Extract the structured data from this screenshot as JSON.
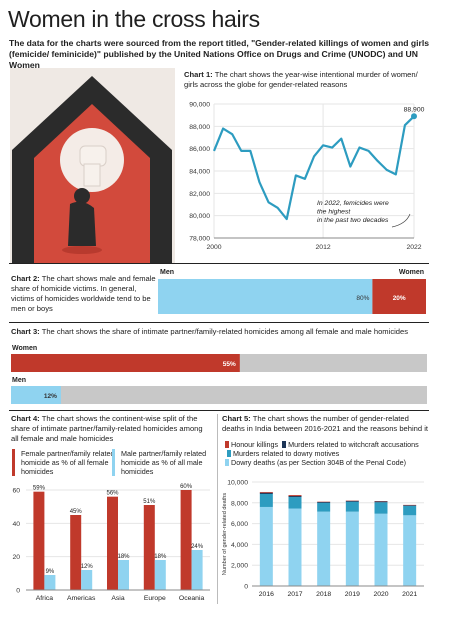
{
  "title": "Women in the cross hairs",
  "intro": "The data for the charts were sourced from the report titled, \"Gender-related killings of women and girls (femicide/ feminicide)\" published by the United Nations Office on Drugs and Crime (UNODC) and UN Women",
  "colors": {
    "red": "#c0392b",
    "lightblue": "#8fd3f0",
    "grey": "#c8c8c8",
    "teal": "#2d9cc0",
    "darkblue": "#1d3557",
    "black": "#222222"
  },
  "chart_data": [
    {
      "type": "line",
      "caption_label": "Chart 1:",
      "caption": "The chart shows the year-wise intentional murder of women/ girls across the globe for gender-related reasons",
      "x": [
        2000,
        2001,
        2002,
        2003,
        2004,
        2005,
        2006,
        2007,
        2008,
        2009,
        2010,
        2011,
        2012,
        2013,
        2014,
        2015,
        2016,
        2017,
        2018,
        2019,
        2020,
        2021,
        2022
      ],
      "y": [
        85800,
        87800,
        87300,
        85800,
        85800,
        83000,
        81200,
        80700,
        79700,
        83600,
        83300,
        85300,
        86300,
        86100,
        86900,
        84400,
        86100,
        85800,
        84900,
        84100,
        83700,
        88100,
        88900
      ],
      "xticks": [
        "2000",
        "2012",
        "2022"
      ],
      "ylim": [
        78000,
        90000
      ],
      "yticks": [
        "78,000",
        "80,000",
        "82,000",
        "84,000",
        "86,000",
        "88,000",
        "90,000"
      ],
      "peak_label": "88,900",
      "annotation": "In 2022, femicides were the highest in the past two decades"
    },
    {
      "type": "bar",
      "caption_label": "Chart 2:",
      "caption": "The chart shows male and female share of homicide victims. In general, victims of homicides worldwide tend to be men or boys",
      "categories": [
        "Men",
        "Women"
      ],
      "values": [
        80,
        20
      ],
      "value_labels": [
        "80%",
        "20%"
      ]
    },
    {
      "type": "bar",
      "caption_label": "Chart 3:",
      "caption": "The chart shows the share of intimate partner/family-related homicides among all female and male homicides",
      "categories": [
        "Women",
        "Men"
      ],
      "values": [
        55,
        12
      ],
      "value_labels": [
        "55%",
        "12%"
      ]
    },
    {
      "type": "bar",
      "caption_label": "Chart 4:",
      "caption": "The chart shows the continent-wise split of the share of intimate partner/family-related homicides among all female and male homicides",
      "categories": [
        "Africa",
        "Americas",
        "Asia",
        "Europe",
        "Oceania"
      ],
      "series": [
        {
          "name": "Female partner/family related homicide as % of all female homicides",
          "values": [
            59,
            45,
            56,
            51,
            60
          ],
          "labels": [
            "59%",
            "45%",
            "56%",
            "51%",
            "60%"
          ]
        },
        {
          "name": "Male partner/family related homicide as % of all male homicides",
          "values": [
            9,
            12,
            18,
            18,
            24
          ],
          "labels": [
            "9%",
            "12%",
            "18%",
            "18%",
            "24%"
          ]
        }
      ],
      "ylim": [
        0,
        60
      ],
      "yticks": [
        "0",
        "20",
        "40",
        "60"
      ]
    },
    {
      "type": "bar",
      "caption_label": "Chart 5:",
      "caption": "The chart shows the number of gender-related deaths in India between 2016-2021 and the reasons behind it",
      "categories": [
        "2016",
        "2017",
        "2018",
        "2019",
        "2020",
        "2021"
      ],
      "series": [
        {
          "name": "Dowry deaths (as per Section 304B of the Penal Code)",
          "values": [
            7600,
            7450,
            7150,
            7150,
            6950,
            6800
          ]
        },
        {
          "name": "Murders related to dowry motives",
          "values": [
            1250,
            1100,
            850,
            950,
            1100,
            900
          ]
        },
        {
          "name": "Murders related to witchcraft accusations",
          "values": [
            120,
            100,
            80,
            90,
            90,
            70
          ]
        },
        {
          "name": "Honour killings",
          "values": [
            70,
            90,
            30,
            30,
            30,
            30
          ]
        }
      ],
      "legend_lines": [
        "Honour killings",
        "Murders related to witchcraft accusations",
        "Murders related to dowry motives",
        "Dowry deaths (as per Section 304B of the Penal Code)"
      ],
      "ylabel": "Number of gender-related deaths",
      "ylim": [
        0,
        10000
      ],
      "yticks": [
        "0",
        "2,000",
        "4,000",
        "6,000",
        "8,000",
        "10,000"
      ]
    }
  ]
}
